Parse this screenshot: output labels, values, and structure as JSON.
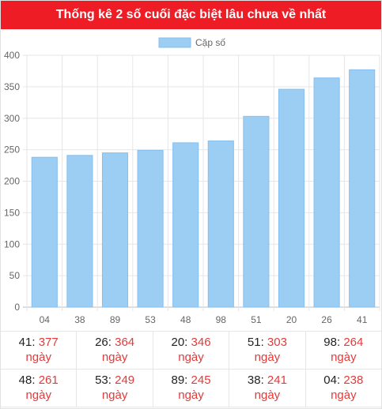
{
  "header": {
    "title": "Thống kê 2 số cuối đặc biệt lâu chưa về nhất"
  },
  "colors": {
    "header_bg": "#ee1c25",
    "bar_fill": "#9ccdf2",
    "bar_stroke": "#86bff0",
    "value_red": "#e43a3a"
  },
  "chart_data": {
    "type": "bar",
    "categories": [
      "04",
      "38",
      "89",
      "53",
      "48",
      "98",
      "51",
      "20",
      "26",
      "41"
    ],
    "series": [
      {
        "name": "Cặp số",
        "values": [
          238,
          241,
          245,
          249,
          261,
          264,
          303,
          346,
          364,
          377
        ]
      }
    ],
    "ylim": [
      0,
      400
    ],
    "yticks": [
      0,
      50,
      100,
      150,
      200,
      250,
      300,
      350,
      400
    ],
    "legend": "top-center",
    "grid": true
  },
  "stats": {
    "unit": "ngày",
    "rows": [
      [
        {
          "num": "41",
          "val": "377"
        },
        {
          "num": "26",
          "val": "364"
        },
        {
          "num": "20",
          "val": "346"
        },
        {
          "num": "51",
          "val": "303"
        },
        {
          "num": "98",
          "val": "264"
        }
      ],
      [
        {
          "num": "48",
          "val": "261"
        },
        {
          "num": "53",
          "val": "249"
        },
        {
          "num": "89",
          "val": "245"
        },
        {
          "num": "38",
          "val": "241"
        },
        {
          "num": "04",
          "val": "238"
        }
      ]
    ]
  }
}
